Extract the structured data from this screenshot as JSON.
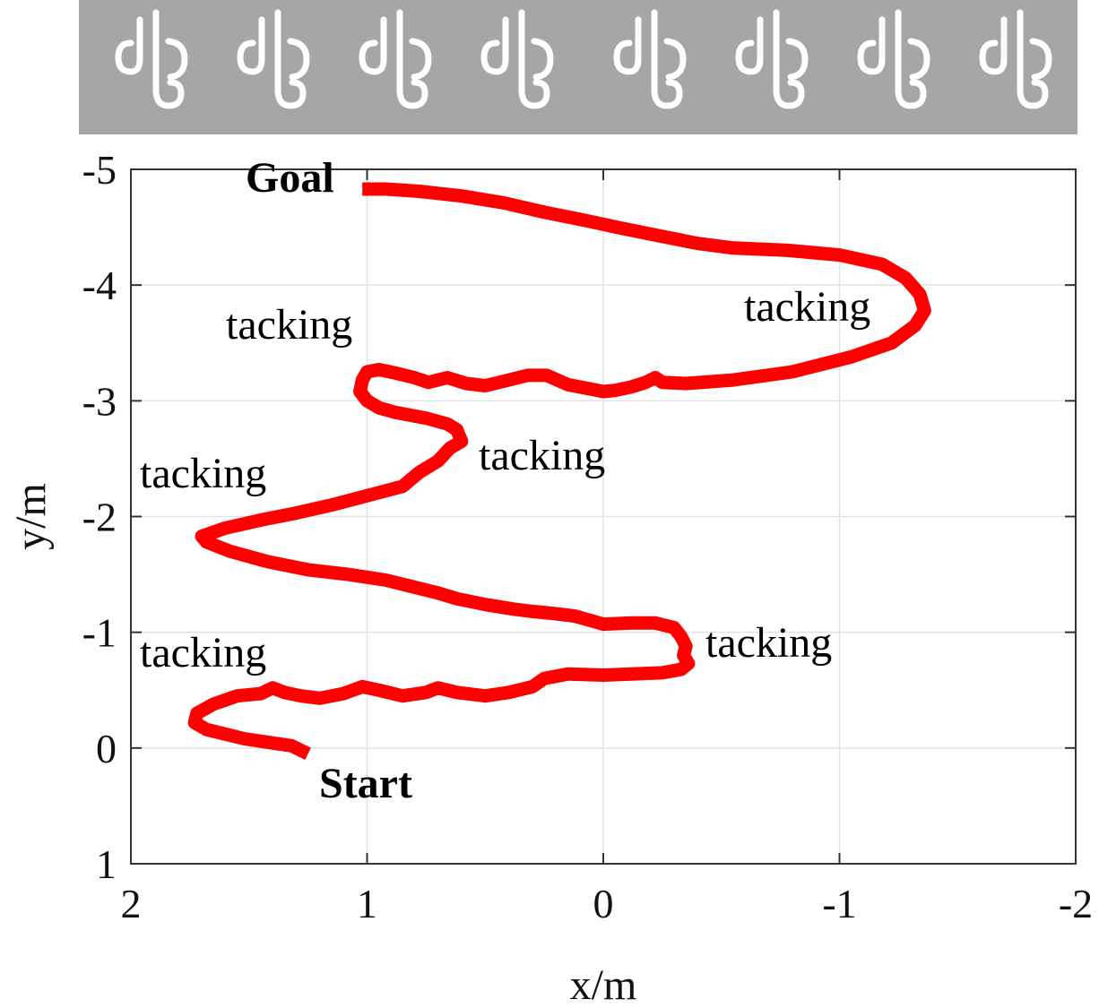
{
  "header_strip": {
    "fan_icon": "wind-fan-icon",
    "fan_count": 8,
    "background": "#a6a6a6",
    "icon_color": "#ffffff"
  },
  "chart_data": {
    "type": "line",
    "title": "",
    "xlabel": "x/m",
    "ylabel": "y/m",
    "xlim": [
      2,
      -2
    ],
    "ylim": [
      -5,
      1
    ],
    "x_reversed": true,
    "y_reversed": true,
    "xticks": [
      2,
      1,
      0,
      -1,
      -2
    ],
    "yticks": [
      -5,
      -4,
      -3,
      -2,
      -1,
      0,
      1
    ],
    "grid": true,
    "series": [
      {
        "color": "#ff0000",
        "points": [
          [
            1.25,
            0.05
          ],
          [
            1.32,
            -0.02
          ],
          [
            1.42,
            -0.05
          ],
          [
            1.52,
            -0.08
          ],
          [
            1.6,
            -0.12
          ],
          [
            1.68,
            -0.16
          ],
          [
            1.73,
            -0.22
          ],
          [
            1.72,
            -0.3
          ],
          [
            1.65,
            -0.38
          ],
          [
            1.55,
            -0.45
          ],
          [
            1.45,
            -0.47
          ],
          [
            1.4,
            -0.52
          ],
          [
            1.35,
            -0.48
          ],
          [
            1.28,
            -0.45
          ],
          [
            1.2,
            -0.43
          ],
          [
            1.1,
            -0.47
          ],
          [
            1.02,
            -0.53
          ],
          [
            0.95,
            -0.5
          ],
          [
            0.85,
            -0.45
          ],
          [
            0.75,
            -0.48
          ],
          [
            0.7,
            -0.52
          ],
          [
            0.62,
            -0.48
          ],
          [
            0.5,
            -0.45
          ],
          [
            0.4,
            -0.48
          ],
          [
            0.3,
            -0.53
          ],
          [
            0.25,
            -0.6
          ],
          [
            0.15,
            -0.64
          ],
          [
            0.0,
            -0.63
          ],
          [
            -0.12,
            -0.64
          ],
          [
            -0.25,
            -0.65
          ],
          [
            -0.33,
            -0.68
          ],
          [
            -0.36,
            -0.73
          ],
          [
            -0.34,
            -0.8
          ],
          [
            -0.35,
            -0.88
          ],
          [
            -0.33,
            -0.96
          ],
          [
            -0.3,
            -1.04
          ],
          [
            -0.22,
            -1.08
          ],
          [
            -0.12,
            -1.08
          ],
          [
            0.0,
            -1.07
          ],
          [
            0.05,
            -1.1
          ],
          [
            0.12,
            -1.14
          ],
          [
            0.2,
            -1.16
          ],
          [
            0.3,
            -1.18
          ],
          [
            0.38,
            -1.2
          ],
          [
            0.5,
            -1.24
          ],
          [
            0.62,
            -1.29
          ],
          [
            0.7,
            -1.34
          ],
          [
            0.8,
            -1.39
          ],
          [
            0.92,
            -1.45
          ],
          [
            1.08,
            -1.5
          ],
          [
            1.25,
            -1.54
          ],
          [
            1.42,
            -1.61
          ],
          [
            1.58,
            -1.7
          ],
          [
            1.68,
            -1.78
          ],
          [
            1.7,
            -1.83
          ],
          [
            1.6,
            -1.9
          ],
          [
            1.45,
            -1.97
          ],
          [
            1.3,
            -2.03
          ],
          [
            1.15,
            -2.1
          ],
          [
            1.0,
            -2.18
          ],
          [
            0.85,
            -2.26
          ],
          [
            0.78,
            -2.38
          ],
          [
            0.7,
            -2.48
          ],
          [
            0.65,
            -2.59
          ],
          [
            0.6,
            -2.65
          ],
          [
            0.62,
            -2.75
          ],
          [
            0.66,
            -2.8
          ],
          [
            0.75,
            -2.85
          ],
          [
            0.88,
            -2.9
          ],
          [
            0.95,
            -2.94
          ],
          [
            1.0,
            -3.0
          ],
          [
            1.03,
            -3.08
          ],
          [
            1.02,
            -3.18
          ],
          [
            1.0,
            -3.25
          ],
          [
            0.95,
            -3.27
          ],
          [
            0.88,
            -3.24
          ],
          [
            0.8,
            -3.2
          ],
          [
            0.74,
            -3.16
          ],
          [
            0.66,
            -3.2
          ],
          [
            0.58,
            -3.15
          ],
          [
            0.5,
            -3.13
          ],
          [
            0.4,
            -3.18
          ],
          [
            0.32,
            -3.22
          ],
          [
            0.24,
            -3.22
          ],
          [
            0.15,
            -3.14
          ],
          [
            0.05,
            -3.1
          ],
          [
            0.0,
            -3.08
          ],
          [
            -0.05,
            -3.09
          ],
          [
            -0.12,
            -3.12
          ],
          [
            -0.18,
            -3.16
          ],
          [
            -0.22,
            -3.2
          ],
          [
            -0.25,
            -3.16
          ],
          [
            -0.35,
            -3.15
          ],
          [
            -0.55,
            -3.18
          ],
          [
            -0.8,
            -3.25
          ],
          [
            -1.05,
            -3.38
          ],
          [
            -1.22,
            -3.5
          ],
          [
            -1.32,
            -3.65
          ],
          [
            -1.36,
            -3.78
          ],
          [
            -1.34,
            -3.92
          ],
          [
            -1.28,
            -4.06
          ],
          [
            -1.18,
            -4.18
          ],
          [
            -1.0,
            -4.26
          ],
          [
            -0.78,
            -4.3
          ],
          [
            -0.55,
            -4.32
          ],
          [
            -0.4,
            -4.36
          ],
          [
            -0.25,
            -4.42
          ],
          [
            -0.08,
            -4.49
          ],
          [
            0.08,
            -4.56
          ],
          [
            0.25,
            -4.63
          ],
          [
            0.42,
            -4.71
          ],
          [
            0.6,
            -4.77
          ],
          [
            0.78,
            -4.81
          ],
          [
            0.92,
            -4.83
          ],
          [
            1.02,
            -4.83
          ]
        ]
      }
    ],
    "annotations": [
      {
        "text": "Goal",
        "bold": true
      },
      {
        "text": "tacking",
        "bold": false
      },
      {
        "text": "tacking",
        "bold": false
      },
      {
        "text": "tacking",
        "bold": false
      },
      {
        "text": "tacking",
        "bold": false
      },
      {
        "text": "tacking",
        "bold": false
      },
      {
        "text": "tacking",
        "bold": false
      },
      {
        "text": "Start",
        "bold": true
      }
    ]
  }
}
